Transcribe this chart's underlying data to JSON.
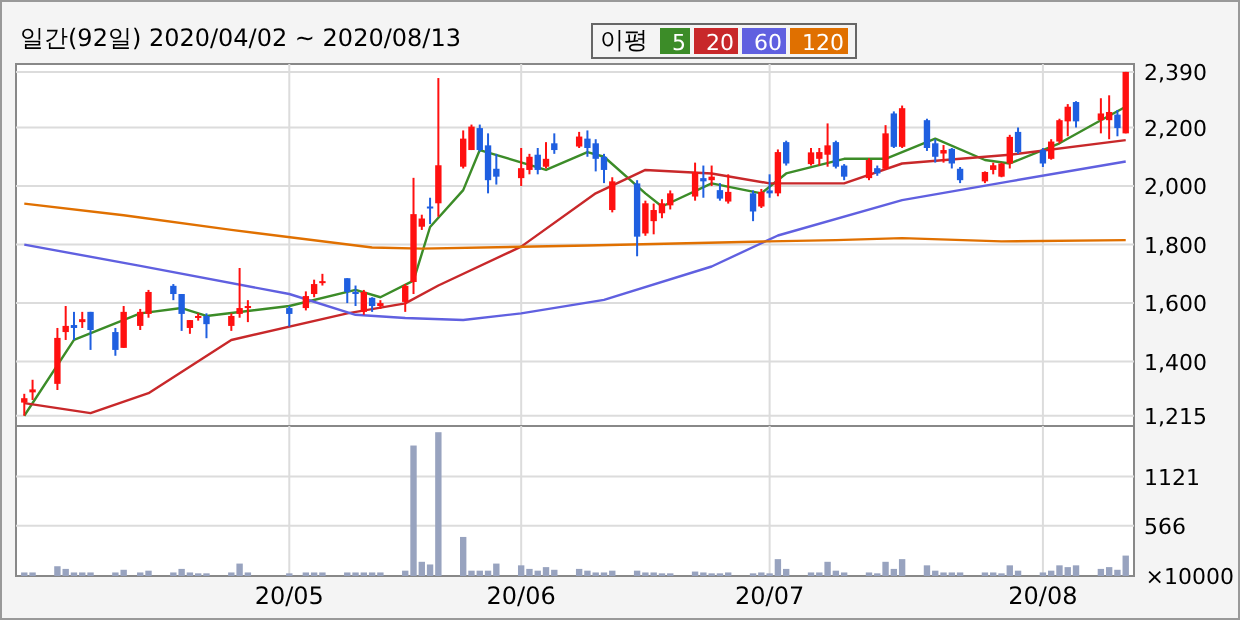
{
  "chart_data": [
    {
      "type": "candlestick",
      "title": "일간(92일) 2020/04/02 ~ 2020/08/13",
      "legend_title": "이평",
      "legend": "top",
      "x": [
        "2020-04-02",
        "2020-04-03",
        "2020-04-06",
        "2020-04-07",
        "2020-04-08",
        "2020-04-09",
        "2020-04-10",
        "2020-04-13",
        "2020-04-14",
        "2020-04-16",
        "2020-04-17",
        "2020-04-20",
        "2020-04-21",
        "2020-04-22",
        "2020-04-23",
        "2020-04-24",
        "2020-04-27",
        "2020-04-28",
        "2020-04-29",
        "2020-05-04",
        "2020-05-06",
        "2020-05-07",
        "2020-05-08",
        "2020-05-11",
        "2020-05-12",
        "2020-05-13",
        "2020-05-14",
        "2020-05-15",
        "2020-05-18",
        "2020-05-19",
        "2020-05-20",
        "2020-05-21",
        "2020-05-22",
        "2020-05-25",
        "2020-05-26",
        "2020-05-27",
        "2020-05-28",
        "2020-05-29",
        "2020-06-01",
        "2020-06-02",
        "2020-06-03",
        "2020-06-04",
        "2020-06-05",
        "2020-06-08",
        "2020-06-09",
        "2020-06-10",
        "2020-06-11",
        "2020-06-12",
        "2020-06-15",
        "2020-06-16",
        "2020-06-17",
        "2020-06-18",
        "2020-06-19",
        "2020-06-22",
        "2020-06-23",
        "2020-06-24",
        "2020-06-25",
        "2020-06-26",
        "2020-06-29",
        "2020-06-30",
        "2020-07-01",
        "2020-07-02",
        "2020-07-03",
        "2020-07-06",
        "2020-07-07",
        "2020-07-08",
        "2020-07-09",
        "2020-07-10",
        "2020-07-13",
        "2020-07-14",
        "2020-07-15",
        "2020-07-16",
        "2020-07-17",
        "2020-07-20",
        "2020-07-21",
        "2020-07-22",
        "2020-07-23",
        "2020-07-24",
        "2020-07-27",
        "2020-07-28",
        "2020-07-29",
        "2020-07-30",
        "2020-07-31",
        "2020-08-03",
        "2020-08-04",
        "2020-08-05",
        "2020-08-06",
        "2020-08-07",
        "2020-08-10",
        "2020-08-11",
        "2020-08-12",
        "2020-08-13"
      ],
      "ohlc": [
        [
          1260,
          1290,
          1215,
          1275
        ],
        [
          1295,
          1338,
          1269,
          1305
        ],
        [
          1324,
          1515,
          1303,
          1481
        ],
        [
          1501,
          1590,
          1474,
          1522
        ],
        [
          1525,
          1570,
          1474,
          1515
        ],
        [
          1535,
          1570,
          1515,
          1545
        ],
        [
          1570,
          1570,
          1440,
          1508
        ],
        [
          1501,
          1515,
          1420,
          1440
        ],
        [
          1447,
          1590,
          1447,
          1570
        ],
        [
          1522,
          1580,
          1508,
          1570
        ],
        [
          1563,
          1645,
          1550,
          1638
        ],
        [
          1659,
          1665,
          1610,
          1631
        ],
        [
          1631,
          1631,
          1505,
          1563
        ],
        [
          1515,
          1542,
          1495,
          1542
        ],
        [
          1550,
          1565,
          1540,
          1556
        ],
        [
          1556,
          1565,
          1480,
          1528
        ],
        [
          1522,
          1565,
          1505,
          1556
        ],
        [
          1563,
          1720,
          1550,
          1583
        ],
        [
          1583,
          1610,
          1535,
          1590
        ],
        [
          1583,
          1590,
          1520,
          1563
        ],
        [
          1583,
          1640,
          1575,
          1624
        ],
        [
          1631,
          1680,
          1620,
          1665
        ],
        [
          1670,
          1700,
          1660,
          1675
        ],
        [
          1685,
          1685,
          1600,
          1638
        ],
        [
          1638,
          1660,
          1590,
          1631
        ],
        [
          1570,
          1645,
          1560,
          1638
        ],
        [
          1618,
          1620,
          1570,
          1590
        ],
        [
          1590,
          1610,
          1580,
          1600
        ],
        [
          1604,
          1665,
          1570,
          1659
        ],
        [
          1672,
          2028,
          1631,
          1904
        ],
        [
          1861,
          1902,
          1850,
          1889
        ],
        [
          1930,
          1960,
          1870,
          1924
        ],
        [
          1941,
          2369,
          1895,
          2071
        ],
        [
          2066,
          2190,
          2060,
          2162
        ],
        [
          2123,
          2210,
          2123,
          2203
        ],
        [
          2198,
          2210,
          2118,
          2123
        ],
        [
          2139,
          2180,
          1975,
          2020
        ],
        [
          2059,
          2110,
          2005,
          2032
        ],
        [
          2027,
          2130,
          2000,
          2061
        ],
        [
          2055,
          2110,
          2040,
          2100
        ],
        [
          2107,
          2130,
          2040,
          2055
        ],
        [
          2066,
          2150,
          2060,
          2093
        ],
        [
          2146,
          2180,
          2110,
          2123
        ],
        [
          2135,
          2185,
          2130,
          2169
        ],
        [
          2162,
          2190,
          2100,
          2130
        ],
        [
          2146,
          2160,
          2050,
          2093
        ],
        [
          2100,
          2110,
          2010,
          2055
        ],
        [
          1918,
          2030,
          1910,
          2016
        ],
        [
          2009,
          2020,
          1760,
          1827
        ],
        [
          1838,
          1950,
          1830,
          1941
        ],
        [
          1880,
          1940,
          1835,
          1918
        ],
        [
          1907,
          1955,
          1890,
          1941
        ],
        [
          1934,
          1985,
          1920,
          1975
        ],
        [
          1964,
          2080,
          1950,
          2048
        ],
        [
          2027,
          2070,
          1960,
          2016
        ],
        [
          2020,
          2070,
          2000,
          2032
        ],
        [
          1986,
          2010,
          1950,
          1957
        ],
        [
          1947,
          2040,
          1940,
          1980
        ],
        [
          1975,
          1985,
          1880,
          1913
        ],
        [
          1930,
          1990,
          1925,
          1980
        ],
        [
          1985,
          2040,
          1960,
          1975
        ],
        [
          1975,
          2125,
          1965,
          2116
        ],
        [
          2150,
          2155,
          2070,
          2077
        ],
        [
          2075,
          2130,
          2070,
          2115
        ],
        [
          2093,
          2130,
          2070,
          2116
        ],
        [
          2107,
          2214,
          2066,
          2139
        ],
        [
          2150,
          2155,
          2060,
          2066
        ],
        [
          2070,
          2075,
          2020,
          2032
        ],
        [
          2027,
          2095,
          2020,
          2089
        ],
        [
          2061,
          2070,
          2035,
          2043
        ],
        [
          2059,
          2208,
          2055,
          2180
        ],
        [
          2248,
          2255,
          2130,
          2134
        ],
        [
          2134,
          2275,
          2130,
          2266
        ],
        [
          2225,
          2230,
          2120,
          2130
        ],
        [
          2146,
          2160,
          2080,
          2100
        ],
        [
          2111,
          2140,
          2080,
          2123
        ],
        [
          2127,
          2130,
          2060,
          2077
        ],
        [
          2059,
          2065,
          2010,
          2020
        ],
        [
          2016,
          2050,
          2010,
          2048
        ],
        [
          2055,
          2080,
          2040,
          2071
        ],
        [
          2032,
          2080,
          2030,
          2077
        ],
        [
          2077,
          2175,
          2060,
          2168
        ],
        [
          2185,
          2200,
          2110,
          2116
        ],
        [
          2123,
          2130,
          2065,
          2077
        ],
        [
          2093,
          2160,
          2090,
          2152
        ],
        [
          2152,
          2230,
          2145,
          2225
        ],
        [
          2221,
          2280,
          2170,
          2271
        ],
        [
          2287,
          2290,
          2200,
          2221
        ],
        [
          2225,
          2300,
          2180,
          2248
        ],
        [
          2225,
          2310,
          2160,
          2253
        ],
        [
          2244,
          2260,
          2170,
          2198
        ],
        [
          2180,
          2390,
          2180,
          2390
        ]
      ],
      "series": [
        {
          "name": "5",
          "type": "line",
          "color": "#3c8c28",
          "x": [
            "2020-04-02",
            "2020-04-08",
            "2020-04-16",
            "2020-04-21",
            "2020-04-24",
            "2020-05-04",
            "2020-05-12",
            "2020-05-15",
            "2020-05-19",
            "2020-05-21",
            "2020-05-25",
            "2020-05-27",
            "2020-06-04",
            "2020-06-09",
            "2020-06-11",
            "2020-06-16",
            "2020-06-18",
            "2020-06-24",
            "2020-06-30",
            "2020-07-03",
            "2020-07-10",
            "2020-07-15",
            "2020-07-21",
            "2020-07-27",
            "2020-07-30",
            "2020-08-05",
            "2020-08-10",
            "2020-08-13"
          ],
          "values": [
            1215,
            1474,
            1565,
            1583,
            1556,
            1590,
            1645,
            1620,
            1677,
            1860,
            1986,
            2123,
            2055,
            2116,
            2100,
            1975,
            1930,
            2009,
            1975,
            2043,
            2093,
            2093,
            2162,
            2089,
            2077,
            2146,
            2225,
            2271
          ]
        },
        {
          "name": "20",
          "type": "line",
          "color": "#c8282a",
          "x": [
            "2020-04-02",
            "2020-04-10",
            "2020-04-17",
            "2020-04-27",
            "2020-05-11",
            "2020-05-18",
            "2020-05-22",
            "2020-06-01",
            "2020-06-10",
            "2020-06-16",
            "2020-06-24",
            "2020-07-01",
            "2020-07-10",
            "2020-07-17",
            "2020-07-30",
            "2020-08-13"
          ],
          "values": [
            1258,
            1224,
            1292,
            1474,
            1565,
            1599,
            1660,
            1793,
            1975,
            2055,
            2043,
            2009,
            2009,
            2077,
            2107,
            2157
          ]
        },
        {
          "name": "60",
          "type": "line",
          "color": "#6060e0",
          "x": [
            "2020-04-02",
            "2020-04-16",
            "2020-05-04",
            "2020-05-12",
            "2020-05-18",
            "2020-05-25",
            "2020-06-01",
            "2020-06-11",
            "2020-06-24",
            "2020-07-02",
            "2020-07-17",
            "2020-07-30",
            "2020-08-13"
          ],
          "values": [
            1800,
            1727,
            1631,
            1560,
            1549,
            1542,
            1565,
            1611,
            1725,
            1831,
            1952,
            2016,
            2084
          ]
        },
        {
          "name": "120",
          "type": "line",
          "color": "#e07000",
          "x": [
            "2020-04-02",
            "2020-04-14",
            "2020-04-27",
            "2020-05-14",
            "2020-05-20",
            "2020-06-09",
            "2020-07-01",
            "2020-07-09",
            "2020-07-17",
            "2020-07-29",
            "2020-08-13"
          ],
          "values": [
            1940,
            1900,
            1850,
            1790,
            1786,
            1797,
            1811,
            1815,
            1822,
            1811,
            1815
          ]
        }
      ],
      "xlim": [
        "2020-04-01",
        "2020-08-14"
      ],
      "xticks": [
        {
          "value": "2020-05-04",
          "label": null
        },
        {
          "value": "2020-06-01",
          "label": null
        },
        {
          "value": "2020-07-01",
          "label": null
        },
        {
          "value": "2020-08-03",
          "label": null
        }
      ],
      "ylim": [
        1180,
        2417
      ],
      "yticks": [
        {
          "value": 1215,
          "label": "1,215"
        },
        {
          "value": 1400,
          "label": "1,400"
        },
        {
          "value": 1600,
          "label": "1,600"
        },
        {
          "value": 1800,
          "label": "1,800"
        },
        {
          "value": 2000,
          "label": "2,000"
        },
        {
          "value": 2200,
          "label": "2,200"
        },
        {
          "value": 2390,
          "label": "2,390"
        }
      ],
      "grid": true,
      "tick_labels": "y"
    },
    {
      "type": "bar",
      "color": "#98a3bf",
      "x": [
        "2020-04-02",
        "2020-04-03",
        "2020-04-06",
        "2020-04-07",
        "2020-04-08",
        "2020-04-09",
        "2020-04-10",
        "2020-04-13",
        "2020-04-14",
        "2020-04-16",
        "2020-04-17",
        "2020-04-20",
        "2020-04-21",
        "2020-04-22",
        "2020-04-23",
        "2020-04-24",
        "2020-04-27",
        "2020-04-28",
        "2020-04-29",
        "2020-05-04",
        "2020-05-06",
        "2020-05-07",
        "2020-05-08",
        "2020-05-11",
        "2020-05-12",
        "2020-05-13",
        "2020-05-14",
        "2020-05-15",
        "2020-05-18",
        "2020-05-19",
        "2020-05-20",
        "2020-05-21",
        "2020-05-22",
        "2020-05-25",
        "2020-05-26",
        "2020-05-27",
        "2020-05-28",
        "2020-05-29",
        "2020-06-01",
        "2020-06-02",
        "2020-06-03",
        "2020-06-04",
        "2020-06-05",
        "2020-06-08",
        "2020-06-09",
        "2020-06-10",
        "2020-06-11",
        "2020-06-12",
        "2020-06-15",
        "2020-06-16",
        "2020-06-17",
        "2020-06-18",
        "2020-06-19",
        "2020-06-22",
        "2020-06-23",
        "2020-06-24",
        "2020-06-25",
        "2020-06-26",
        "2020-06-29",
        "2020-06-30",
        "2020-07-01",
        "2020-07-02",
        "2020-07-03",
        "2020-07-06",
        "2020-07-07",
        "2020-07-08",
        "2020-07-09",
        "2020-07-10",
        "2020-07-13",
        "2020-07-14",
        "2020-07-15",
        "2020-07-16",
        "2020-07-17",
        "2020-07-20",
        "2020-07-21",
        "2020-07-22",
        "2020-07-23",
        "2020-07-24",
        "2020-07-27",
        "2020-07-28",
        "2020-07-29",
        "2020-07-30",
        "2020-07-31",
        "2020-08-03",
        "2020-08-04",
        "2020-08-05",
        "2020-08-06",
        "2020-08-07",
        "2020-08-10",
        "2020-08-11",
        "2020-08-12",
        "2020-08-13"
      ],
      "values": [
        40,
        40,
        110,
        80,
        40,
        40,
        40,
        40,
        70,
        40,
        60,
        40,
        80,
        40,
        30,
        30,
        40,
        140,
        40,
        30,
        40,
        40,
        40,
        40,
        40,
        40,
        40,
        40,
        60,
        1470,
        160,
        130,
        1620,
        440,
        60,
        60,
        60,
        140,
        120,
        80,
        60,
        100,
        70,
        80,
        60,
        40,
        40,
        60,
        60,
        40,
        40,
        30,
        30,
        50,
        40,
        30,
        30,
        40,
        30,
        40,
        30,
        190,
        80,
        40,
        40,
        160,
        60,
        40,
        40,
        30,
        160,
        80,
        190,
        120,
        60,
        40,
        40,
        40,
        40,
        40,
        30,
        120,
        60,
        40,
        60,
        120,
        100,
        120,
        80,
        100,
        70,
        230
      ],
      "xlim": [
        "2020-04-01",
        "2020-08-14"
      ],
      "xticks": [
        {
          "value": "2020-05-04",
          "label": "20/05"
        },
        {
          "value": "2020-06-01",
          "label": "20/06"
        },
        {
          "value": "2020-07-01",
          "label": "20/07"
        },
        {
          "value": "2020-08-03",
          "label": "20/08"
        }
      ],
      "ylim": [
        0,
        1690
      ],
      "yticks": [
        566,
        1121
      ],
      "ylabel": "×10000",
      "grid": true
    }
  ]
}
